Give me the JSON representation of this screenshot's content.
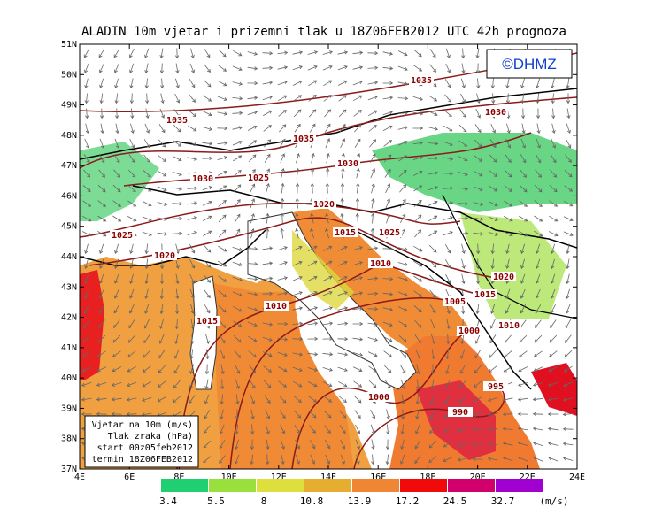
{
  "title": "ALADIN 10m vjetar i prizemni tlak u 18Z06FEB2012 UTC 42h prognoza",
  "logo": "©DHMZ",
  "lat_ticks": [
    {
      "value": 37,
      "label": "37N"
    },
    {
      "value": 38,
      "label": "38N"
    },
    {
      "value": 39,
      "label": "39N"
    },
    {
      "value": 40,
      "label": "40N"
    },
    {
      "value": 41,
      "label": "41N"
    },
    {
      "value": 42,
      "label": "42N"
    },
    {
      "value": 43,
      "label": "43N"
    },
    {
      "value": 44,
      "label": "44N"
    },
    {
      "value": 45,
      "label": "45N"
    },
    {
      "value": 46,
      "label": "46N"
    },
    {
      "value": 47,
      "label": "47N"
    },
    {
      "value": 48,
      "label": "48N"
    },
    {
      "value": 49,
      "label": "49N"
    },
    {
      "value": 50,
      "label": "50N"
    },
    {
      "value": 51,
      "label": "51N"
    }
  ],
  "lon_ticks": [
    {
      "value": 4,
      "label": "4E"
    },
    {
      "value": 6,
      "label": "6E"
    },
    {
      "value": 8,
      "label": "8E"
    },
    {
      "value": 10,
      "label": "10E"
    },
    {
      "value": 12,
      "label": "12E"
    },
    {
      "value": 14,
      "label": "14E"
    },
    {
      "value": 16,
      "label": "16E"
    },
    {
      "value": 18,
      "label": "18E"
    },
    {
      "value": 20,
      "label": "20E"
    },
    {
      "value": 22,
      "label": "22E"
    },
    {
      "value": 24,
      "label": "24E"
    }
  ],
  "isobar_labels": [
    "1035",
    "1030",
    "1035",
    "1035",
    "1030",
    "1030",
    "1025",
    "1020",
    "1015",
    "1025",
    "1025",
    "1020",
    "1010",
    "1020",
    "1015",
    "1010",
    "1005",
    "1015",
    "1010",
    "1000",
    "995",
    "1000",
    "990"
  ],
  "info": [
    "Vjetar na 10m (m/s)",
    "Tlak zraka (hPa)",
    "start 00z05feb2012",
    "termin 18Z06FEB2012"
  ],
  "legend": {
    "values": [
      3.4,
      5.5,
      8,
      10.8,
      13.9,
      17.2,
      24.5,
      32.7
    ],
    "colors": [
      "#1fcf70",
      "#9ae03c",
      "#dede3c",
      "#e6ae30",
      "#f08634",
      "#f00a0a",
      "#d2006c",
      "#a000d0"
    ],
    "unit": "(m/s)"
  }
}
